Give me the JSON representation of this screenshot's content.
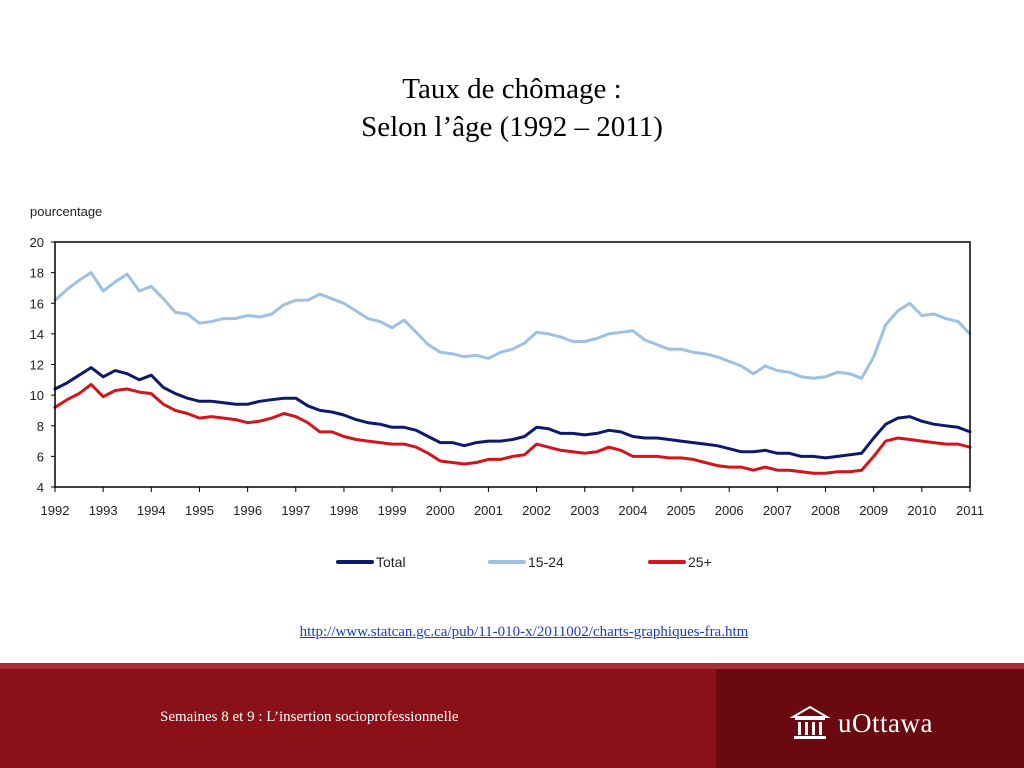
{
  "slide": {
    "title_line1": "Taux de chômage :",
    "title_line2": "Selon l’âge (1992 – 2011)"
  },
  "source_link": "http://www.statcan.gc.ca/pub/11-010-x/2011002/charts-graphiques-fra.htm",
  "footer": {
    "text": "Semaines 8 et 9 : L’insertion socioprofessionnelle",
    "brand": "uOttawa",
    "logo_icon": "building-columns-icon"
  },
  "colors": {
    "total": "#0d1a6b",
    "youth": "#9cc1e3",
    "adult": "#d2141b",
    "footer_bg": "#8c1018"
  },
  "chart_data": {
    "type": "line",
    "ylabel": "pourcentage",
    "ylim": [
      4,
      20
    ],
    "xlim": [
      1992,
      2011
    ],
    "grid": false,
    "legend_position": "bottom",
    "yticks": [
      "4",
      "6",
      "8",
      "10",
      "12",
      "14",
      "16",
      "18",
      "20"
    ],
    "xticks": [
      "1992",
      "1993",
      "1994",
      "1995",
      "1996",
      "1997",
      "1998",
      "1999",
      "2000",
      "2001",
      "2002",
      "2003",
      "2004",
      "2005",
      "2006",
      "2007",
      "2008",
      "2009",
      "2010",
      "2011"
    ],
    "x": [
      1992.0,
      1992.25,
      1992.5,
      1992.75,
      1993.0,
      1993.25,
      1993.5,
      1993.75,
      1994.0,
      1994.25,
      1994.5,
      1994.75,
      1995.0,
      1995.25,
      1995.5,
      1995.75,
      1996.0,
      1996.25,
      1996.5,
      1996.75,
      1997.0,
      1997.25,
      1997.5,
      1997.75,
      1998.0,
      1998.25,
      1998.5,
      1998.75,
      1999.0,
      1999.25,
      1999.5,
      1999.75,
      2000.0,
      2000.25,
      2000.5,
      2000.75,
      2001.0,
      2001.25,
      2001.5,
      2001.75,
      2002.0,
      2002.25,
      2002.5,
      2002.75,
      2003.0,
      2003.25,
      2003.5,
      2003.75,
      2004.0,
      2004.25,
      2004.5,
      2004.75,
      2005.0,
      2005.25,
      2005.5,
      2005.75,
      2006.0,
      2006.25,
      2006.5,
      2006.75,
      2007.0,
      2007.25,
      2007.5,
      2007.75,
      2008.0,
      2008.25,
      2008.5,
      2008.75,
      2009.0,
      2009.25,
      2009.5,
      2009.75,
      2010.0,
      2010.25,
      2010.5,
      2010.75,
      2011.0
    ],
    "series": [
      {
        "name": "Total",
        "values": [
          10.4,
          10.8,
          11.3,
          11.8,
          11.2,
          11.6,
          11.4,
          11.0,
          11.3,
          10.5,
          10.1,
          9.8,
          9.6,
          9.6,
          9.5,
          9.4,
          9.4,
          9.6,
          9.7,
          9.8,
          9.8,
          9.3,
          9.0,
          8.9,
          8.7,
          8.4,
          8.2,
          8.1,
          7.9,
          7.9,
          7.7,
          7.3,
          6.9,
          6.9,
          6.7,
          6.9,
          7.0,
          7.0,
          7.1,
          7.3,
          7.9,
          7.8,
          7.5,
          7.5,
          7.4,
          7.5,
          7.7,
          7.6,
          7.3,
          7.2,
          7.2,
          7.1,
          7.0,
          6.9,
          6.8,
          6.7,
          6.5,
          6.3,
          6.3,
          6.4,
          6.2,
          6.2,
          6.0,
          6.0,
          5.9,
          6.0,
          6.1,
          6.2,
          7.2,
          8.1,
          8.5,
          8.6,
          8.3,
          8.1,
          8.0,
          7.9,
          7.6
        ]
      },
      {
        "name": "15-24",
        "values": [
          16.2,
          16.9,
          17.5,
          18.0,
          16.8,
          17.4,
          17.9,
          16.8,
          17.1,
          16.3,
          15.4,
          15.3,
          14.7,
          14.8,
          15.0,
          15.0,
          15.2,
          15.1,
          15.3,
          15.9,
          16.2,
          16.2,
          16.6,
          16.3,
          16.0,
          15.5,
          15.0,
          14.8,
          14.4,
          14.9,
          14.1,
          13.3,
          12.8,
          12.7,
          12.5,
          12.6,
          12.4,
          12.8,
          13.0,
          13.4,
          14.1,
          14.0,
          13.8,
          13.5,
          13.5,
          13.7,
          14.0,
          14.1,
          14.2,
          13.6,
          13.3,
          13.0,
          13.0,
          12.8,
          12.7,
          12.5,
          12.2,
          11.9,
          11.4,
          11.9,
          11.6,
          11.5,
          11.2,
          11.1,
          11.2,
          11.5,
          11.4,
          11.1,
          12.5,
          14.6,
          15.5,
          16.0,
          15.2,
          15.3,
          15.0,
          14.8,
          14.0
        ]
      },
      {
        "name": "25+",
        "values": [
          9.2,
          9.7,
          10.1,
          10.7,
          9.9,
          10.3,
          10.4,
          10.2,
          10.1,
          9.4,
          9.0,
          8.8,
          8.5,
          8.6,
          8.5,
          8.4,
          8.2,
          8.3,
          8.5,
          8.8,
          8.6,
          8.2,
          7.6,
          7.6,
          7.3,
          7.1,
          7.0,
          6.9,
          6.8,
          6.8,
          6.6,
          6.2,
          5.7,
          5.6,
          5.5,
          5.6,
          5.8,
          5.8,
          6.0,
          6.1,
          6.8,
          6.6,
          6.4,
          6.3,
          6.2,
          6.3,
          6.6,
          6.4,
          6.0,
          6.0,
          6.0,
          5.9,
          5.9,
          5.8,
          5.6,
          5.4,
          5.3,
          5.3,
          5.1,
          5.3,
          5.1,
          5.1,
          5.0,
          4.9,
          4.9,
          5.0,
          5.0,
          5.1,
          6.0,
          7.0,
          7.2,
          7.1,
          7.0,
          6.9,
          6.8,
          6.8,
          6.6
        ]
      }
    ]
  }
}
